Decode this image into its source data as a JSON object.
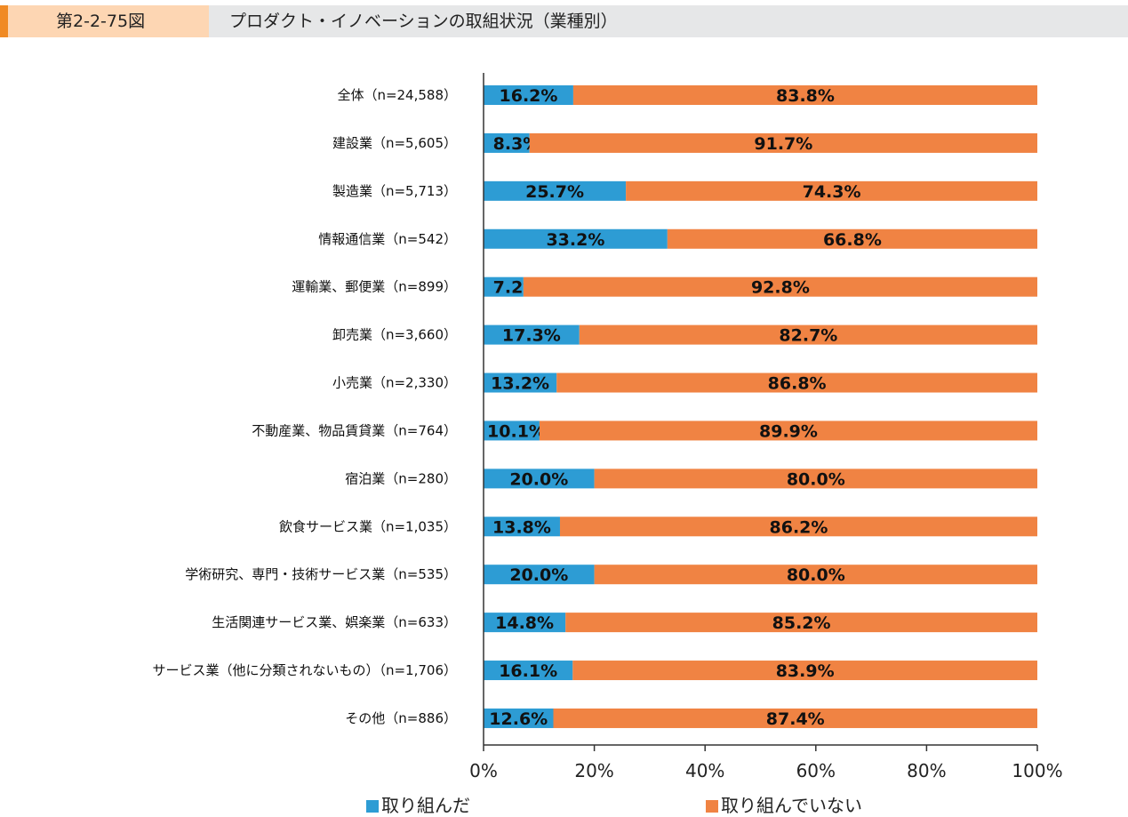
{
  "header": {
    "figure_number": "第2-2-75図",
    "title": "プロダクト・イノベーションの取組状況（業種別）"
  },
  "colors": {
    "blue": "#2d9cd4",
    "orange": "#f08343",
    "header_stripe": "#f08a24",
    "header_label_bg": "#fdd6b3",
    "header_bg": "#e6e7e8"
  },
  "chart_data": {
    "type": "bar",
    "orientation": "horizontal",
    "stacked": "percent",
    "categories": [
      "全体（n=24,588）",
      "建設業（n=5,605）",
      "製造業（n=5,713）",
      "情報通信業（n=542）",
      "運輸業、郵便業（n=899）",
      "卸売業（n=3,660）",
      "小売業（n=2,330）",
      "不動産業、物品賃貸業（n=764）",
      "宿泊業（n=280）",
      "飲食サービス業（n=1,035）",
      "学術研究、専門・技術サービス業（n=535）",
      "生活関連サービス業、娯楽業（n=633）",
      "サービス業（他に分類されないもの）（n=1,706）",
      "その他（n=886）"
    ],
    "series": [
      {
        "name": "取り組んだ",
        "color": "#2d9cd4",
        "values": [
          16.2,
          8.3,
          25.7,
          33.2,
          7.2,
          17.3,
          13.2,
          10.1,
          20.0,
          13.8,
          20.0,
          14.8,
          16.1,
          12.6
        ]
      },
      {
        "name": "取り組んでいない",
        "color": "#f08343",
        "values": [
          83.8,
          91.7,
          74.3,
          66.8,
          92.8,
          82.7,
          86.8,
          89.9,
          80.0,
          86.2,
          80.0,
          85.2,
          83.9,
          87.4
        ]
      }
    ],
    "xlim": [
      0,
      100
    ],
    "xticks": [
      "0%",
      "20%",
      "40%",
      "60%",
      "80%",
      "100%"
    ],
    "grid": false,
    "legend": "bottom",
    "data_labels": true
  }
}
